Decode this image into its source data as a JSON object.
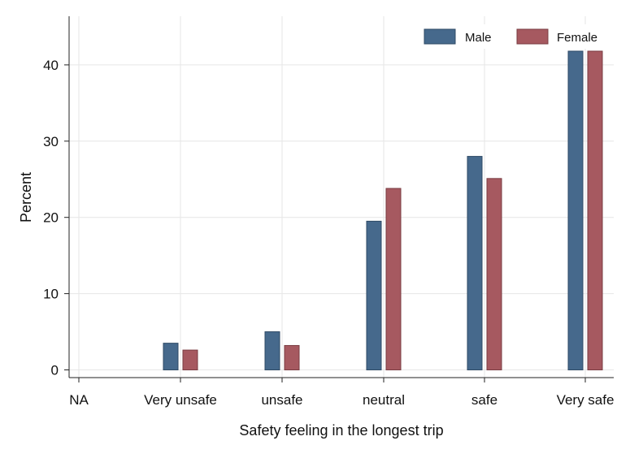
{
  "chart_data": {
    "type": "bar",
    "xlabel": "Safety feeling in the longest trip",
    "ylabel": "Percent",
    "categories": [
      "NA",
      "Very unsafe",
      "unsafe",
      "neutral",
      "safe",
      "Very safe"
    ],
    "series": [
      {
        "name": "Male",
        "color": "#46698c",
        "values": [
          0,
          3.5,
          5.0,
          19.5,
          28.0,
          41.8
        ]
      },
      {
        "name": "Female",
        "color": "#a65960",
        "values": [
          0,
          2.6,
          3.2,
          23.8,
          25.1,
          41.8
        ]
      }
    ],
    "ylim": [
      0,
      45
    ],
    "yticks": [
      0,
      10,
      20,
      30,
      40
    ],
    "grid": true,
    "legend_position": "top-right"
  }
}
